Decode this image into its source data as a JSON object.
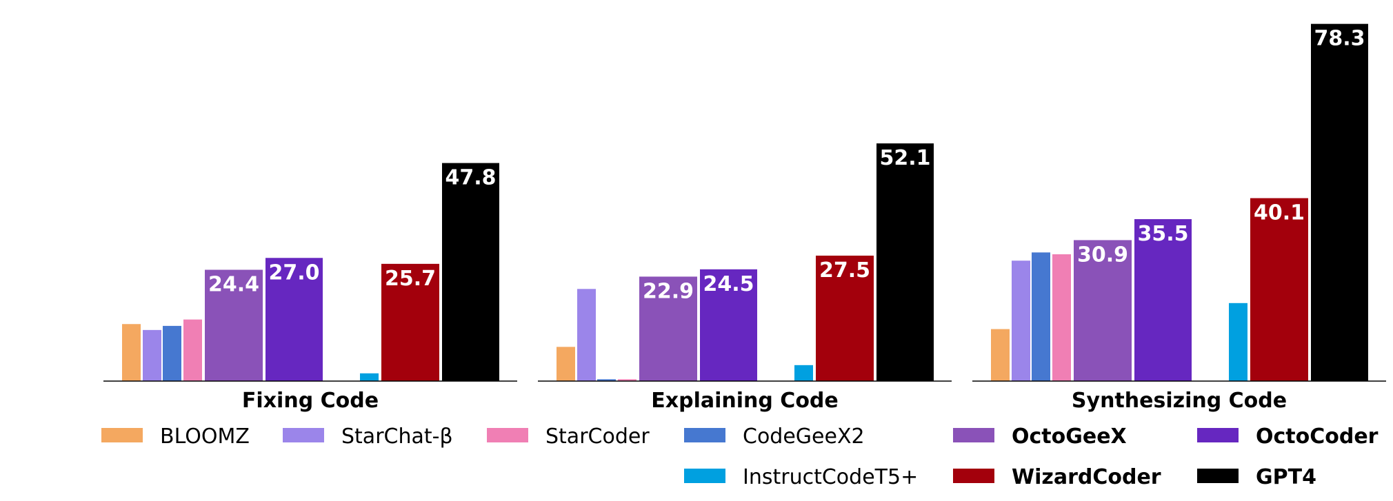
{
  "chart_data": {
    "type": "bar",
    "categories": [
      "Fixing Code",
      "Explaining Code",
      "Synthesizing Code"
    ],
    "ylim": [
      0,
      82
    ],
    "grid": false,
    "legend_position": "bottom",
    "series": [
      {
        "name": "BLOOMZ",
        "color": "#f4a860",
        "bold": false,
        "bar_width": "narrow",
        "values": [
          12.5,
          7.5,
          11.4
        ],
        "show_labels": false
      },
      {
        "name": "StarChat-β",
        "color": "#9b85ea",
        "bold": false,
        "bar_width": "narrow",
        "values": [
          11.2,
          20.2,
          26.4
        ],
        "show_labels": false
      },
      {
        "name": "CodeGeeX2",
        "color": "#4678d0",
        "bold": false,
        "bar_width": "narrow",
        "values": [
          12.1,
          0.4,
          28.2
        ],
        "show_labels": false
      },
      {
        "name": "StarCoder",
        "color": "#f07fb4",
        "bold": false,
        "bar_width": "narrow",
        "values": [
          13.5,
          0.4,
          27.8
        ],
        "show_labels": false
      },
      {
        "name": "OctoGeeX",
        "color": "#8a52b8",
        "bold": true,
        "bar_width": "wide",
        "values": [
          24.4,
          22.9,
          30.9
        ],
        "show_labels": true
      },
      {
        "name": "OctoCoder",
        "color": "#6627c0",
        "bold": true,
        "bar_width": "wide",
        "values": [
          27.0,
          24.5,
          35.5
        ],
        "show_labels": true
      },
      {
        "name": "InstructCodeT5+",
        "color": "#00a0e0",
        "bold": false,
        "bar_width": "narrow",
        "values": [
          1.7,
          3.5,
          17.1
        ],
        "show_labels": false
      },
      {
        "name": "WizardCoder",
        "color": "#a3000c",
        "bold": true,
        "bar_width": "wide",
        "values": [
          25.7,
          27.5,
          40.1
        ],
        "show_labels": true
      },
      {
        "name": "GPT4",
        "color": "#000000",
        "bold": true,
        "bar_width": "wide",
        "values": [
          47.8,
          52.1,
          78.3
        ],
        "show_labels": true
      }
    ],
    "value_labels": [
      [
        "",
        "",
        "",
        "",
        "24.4",
        "27.0",
        "",
        "25.7",
        "47.8"
      ],
      [
        "",
        "",
        "",
        "",
        "22.9",
        "24.5",
        "",
        "27.5",
        "52.1"
      ],
      [
        "",
        "",
        "",
        "",
        "30.9",
        "35.5",
        "",
        "40.1",
        "78.3"
      ]
    ],
    "legend_rows": [
      [
        "BLOOMZ",
        "StarChat-β",
        "StarCoder",
        "CodeGeeX2",
        "OctoGeeX",
        "OctoCoder"
      ],
      [
        "InstructCodeT5+",
        "WizardCoder",
        "GPT4"
      ]
    ]
  }
}
